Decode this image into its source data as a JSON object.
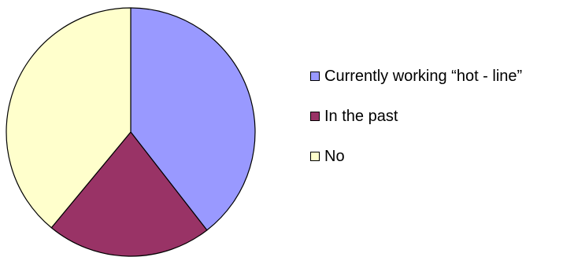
{
  "chart_data": {
    "type": "pie",
    "title": "",
    "categories": [
      "Currently working “hot - line”",
      "In the past",
      "No"
    ],
    "values": [
      39.5,
      21.5,
      39.0
    ],
    "colors": [
      "#9999FF",
      "#993366",
      "#FFFFCC"
    ],
    "start": "12 o'clock, clockwise",
    "legend_position": "right"
  }
}
